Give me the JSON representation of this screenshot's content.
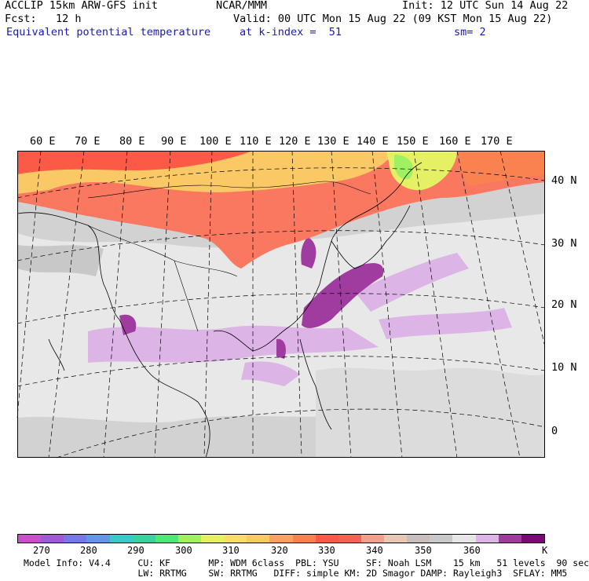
{
  "header": {
    "left1": "ACCLIP 15km ARW-GFS init",
    "center1": "NCAR/MMM",
    "right1": "Init: 12 UTC Sun 14 Aug 22",
    "left2": "Fcst:   12 h",
    "center2": "Valid: 00 UTC Mon 15 Aug 22 (09 KST Mon 15 Aug 22)",
    "left3": "Equivalent potential temperature",
    "center3": "at k-index =  51",
    "right3": "sm= 2"
  },
  "longitude_labels": [
    "60 E",
    "70 E",
    "80 E",
    "90 E",
    "100 E",
    "110 E",
    "120 E",
    "130 E",
    "140 E",
    "150 E",
    "160 E",
    "170 E"
  ],
  "latitude_labels": [
    "40 N",
    "30 N",
    "20 N",
    "10 N",
    "0"
  ],
  "colorbar": {
    "colors": [
      "#c850c8",
      "#a05ad2",
      "#7878e6",
      "#6496e6",
      "#3cc8c8",
      "#3cd2a0",
      "#50e678",
      "#a0f064",
      "#e6f064",
      "#fadc6e",
      "#fac864",
      "#faa064",
      "#fa8250",
      "#fa5a46",
      "#f06450",
      "#f0a08c",
      "#e6c8b4",
      "#c8bebe",
      "#c8c8c8",
      "#e6e6e6",
      "#dcb4e6",
      "#a03ca0",
      "#780a78"
    ],
    "labels": [
      "270",
      "280",
      "290",
      "300",
      "310",
      "320",
      "330",
      "340",
      "350",
      "360",
      "K"
    ]
  },
  "footer": {
    "line1": "Model Info: V4.4     CU: KF       MP: WDM 6class  PBL: YSU     SF: Noah LSM    15 km   51 levels  90 sec",
    "line2": "                     LW: RRTMG    SW: RRTMG   DIFF: simple KM: 2D Smagor DAMP: Rayleigh3  SFLAY: MM5"
  }
}
